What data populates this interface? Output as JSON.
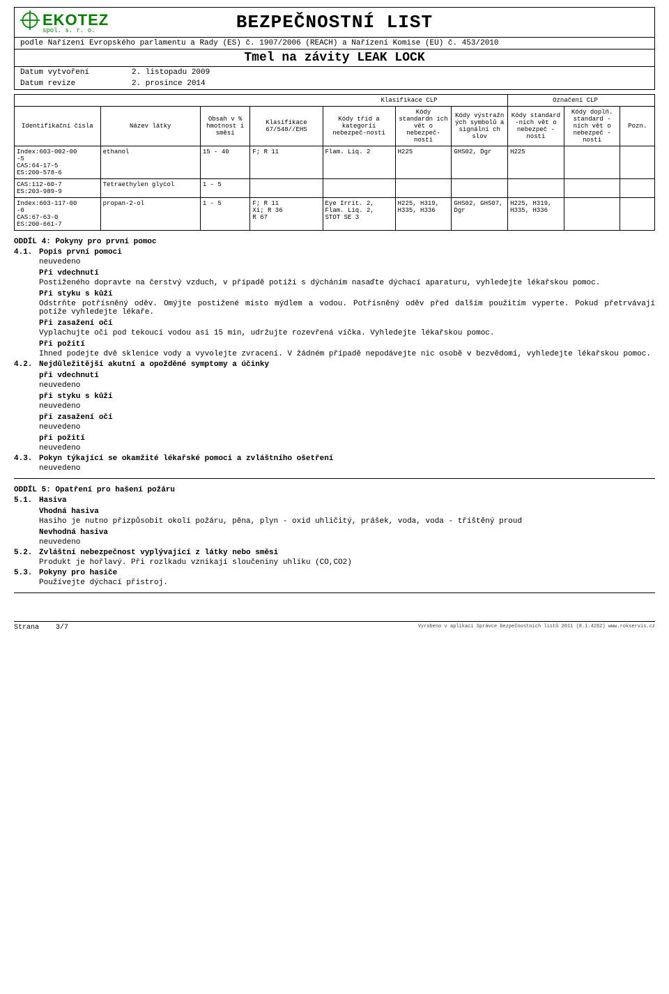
{
  "header": {
    "logo_text": "EKOTEZ",
    "logo_sub": "spol. s. r. o.",
    "doc_title": "BEZPEČNOSTNÍ LIST",
    "regulation": "podle Nařízení Evropského parlamentu a Rady (ES) č. 1907/2006 (REACH) a Nařízení Komise (EU) č. 453/2010",
    "product": "Tmel na závity LEAK LOCK",
    "date_created_label": "Datum vytvoření",
    "date_created": "2. listopadu 2009",
    "date_revision_label": "Datum revize",
    "date_revision": "2. prosince 2014"
  },
  "table": {
    "clp_class": "Klasifikace CLP",
    "clp_label": "Označení CLP",
    "cols": {
      "id": "Identifikační čísla",
      "name": "Název látky",
      "content": "Obsah v % hmotnost i směsi",
      "class": "Klasifikace 67/548//EHS",
      "hazcodes": "Kódy tříd a kategorií nebezpeč-nosti",
      "stdphrase": "Kódy standardn ích vět o nebezpeč- nosti",
      "pictogram": "Kódy výstražn ých symbolů a signální ch slov",
      "stdcodes": "Kódy standard -ních vět o nebezpeč -nosti",
      "suppl": "Kódy doplň. standard -ních vět o nebezpeč -nosti",
      "note": "Pozn."
    },
    "rows": [
      {
        "id": "Index:603-002-00\n-5\nCAS:64-17-5\nES:200-578-6",
        "name": "ethanol",
        "content": "15 - 40",
        "class": "F; R 11",
        "hazcodes": "Flam. Liq. 2",
        "stdphrase": "H225",
        "pictogram": "GHS02, Dgr",
        "stdcodes": "H225",
        "suppl": "",
        "note": ""
      },
      {
        "id": "CAS:112-60-7\nES:203-989-9",
        "name": "Tetraethylen glycol",
        "content": "1 - 5",
        "class": "",
        "hazcodes": "",
        "stdphrase": "",
        "pictogram": "",
        "stdcodes": "",
        "suppl": "",
        "note": ""
      },
      {
        "id": "Index:603-117-00\n-0\nCAS:67-63-0\nES:200-661-7",
        "name": "propan-2-ol",
        "content": "1 - 5",
        "class": "F; R 11\nXi; R 36\nR 67",
        "hazcodes": "Eye Irrit. 2,\nFlam. Liq. 2,\nSTOT SE 3",
        "stdphrase": "H225, H319, H335, H336",
        "pictogram": "GHS02, GHS07, Dgr",
        "stdcodes": "H225, H319, H335, H336",
        "suppl": "",
        "note": ""
      }
    ]
  },
  "section4": {
    "heading": "ODDÍL 4: Pokyny pro první pomoc",
    "s41_num": "4.1.",
    "s41_title": "Popis první pomoci",
    "neuvedeno": "neuvedeno",
    "inhale_h": "Při vdechnutí",
    "inhale_t": "Postiženého dopravte na čerstvý vzduch, v případě potíží s dýcháním nasaďte dýchací aparaturu, vyhledejte lékařskou pomoc.",
    "skin_h": "Při styku s kůží",
    "skin_t": "Odstrňte potřísněný oděv. Omýjte postižené místo mýdlem a vodou. Potřísněný oděv před dalším použitím vyperte. Pokud přetrvávají potíže vyhledejte lékaře.",
    "eye_h": "Při zasažení očí",
    "eye_t": "Vyplachujte oči pod tekoucí vodou asi 15 min, udržujte rozevřená víčka. Vyhledejte lékařskou pomoc.",
    "swallow_h": "Při požití",
    "swallow_t": "Ihned podejte dvě sklenice vody a vyvolejte zvracení. V žádném případě nepodávejte nic osobě v bezvědomí, vyhledejte lékařskou pomoc.",
    "s42_num": "4.2.",
    "s42_title": "Nejdůležitější akutní a opožděné symptomy a účinky",
    "s42_a": "při vdechnutí",
    "s42_b": "při styku s kůží",
    "s42_c": "při zasažení očí",
    "s42_d": "při požití",
    "s43_num": "4.3.",
    "s43_title": "Pokyn týkající se okamžité lékařské pomoci a zvláštního ošetření"
  },
  "section5": {
    "heading": "ODDÍL 5: Opatření pro hašení požáru",
    "s51_num": "5.1.",
    "s51_title": "Hasiva",
    "suitable_h": "Vhodná hasiva",
    "suitable_t": "Hasiho je nutno přizpůsobit okolí požáru, pěna, plyn - oxid uhličitý, prášek, voda, voda - tříštěný proud",
    "unsuitable_h": "Nevhodná hasiva",
    "s52_num": "5.2.",
    "s52_title": "Zvláštní nebezpečnost vyplývající z látky nebo směsi",
    "s52_t": "Produkt je hořlavý. Při rozlkadu vznikají sloučeniny uhlíku (CO,CO2)",
    "s53_num": "5.3.",
    "s53_title": "Pokyny pro hasiče",
    "s53_t": "Používejte dýchací přístroj."
  },
  "footer": {
    "page_label": "Strana",
    "page": "3/7",
    "credit": "Vyrobeno v aplikaci Správce bezpečnostních listů 2011 (8.1.4262) www.rokservis.cz"
  },
  "colors": {
    "brand": "#008000",
    "border": "#000000",
    "text": "#000000",
    "bg": "#ffffff"
  }
}
